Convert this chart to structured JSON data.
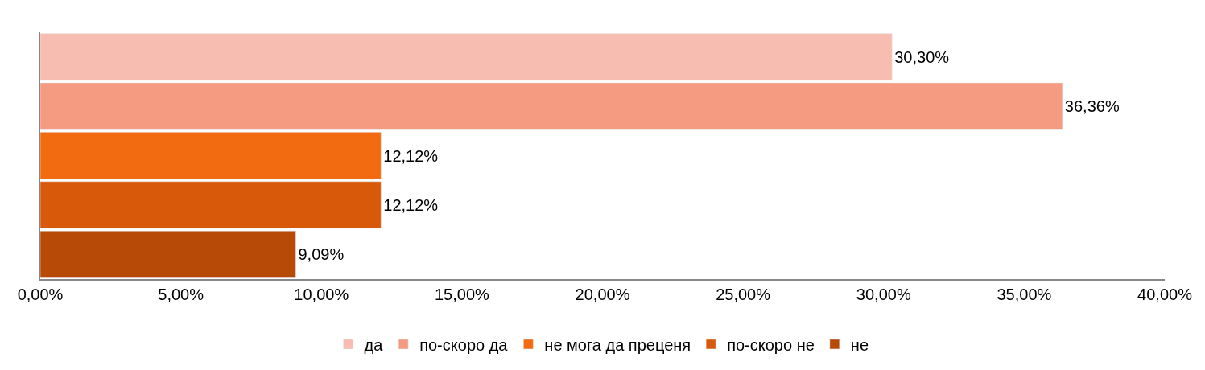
{
  "chart_data": {
    "type": "bar",
    "orientation": "horizontal",
    "categories": [
      null,
      null,
      null,
      null,
      null
    ],
    "series": [
      {
        "name": "да",
        "color": "#f7bdb0",
        "values": [
          30.3,
          null,
          null,
          null,
          null
        ],
        "value_labels": [
          "30,30%",
          null,
          null,
          null,
          null
        ]
      },
      {
        "name": "по-скоро да",
        "color": "#f49b82",
        "values": [
          null,
          36.36,
          null,
          null,
          null
        ],
        "value_labels": [
          null,
          "36,36%",
          null,
          null,
          null
        ]
      },
      {
        "name": "не мога да преценя",
        "color": "#f26b10",
        "values": [
          null,
          null,
          12.12,
          null,
          null
        ],
        "value_labels": [
          null,
          null,
          "12,12%",
          null,
          null
        ]
      },
      {
        "name": "по-скоро не",
        "color": "#d9590b",
        "values": [
          null,
          null,
          null,
          12.12,
          null
        ],
        "value_labels": [
          null,
          null,
          null,
          "12,12%",
          null
        ]
      },
      {
        "name": "не",
        "color": "#b84a08",
        "values": [
          null,
          null,
          null,
          null,
          9.09
        ],
        "value_labels": [
          null,
          null,
          null,
          null,
          "9,09%"
        ]
      }
    ],
    "xlim": [
      0,
      40
    ],
    "xticks": [
      {
        "value": 0,
        "label": "0,00%"
      },
      {
        "value": 5,
        "label": "5,00%"
      },
      {
        "value": 10,
        "label": "10,00%"
      },
      {
        "value": 15,
        "label": "15,00%"
      },
      {
        "value": 20,
        "label": "20,00%"
      },
      {
        "value": 25,
        "label": "25,00%"
      },
      {
        "value": 30,
        "label": "30,00%"
      },
      {
        "value": 35,
        "label": "35,00%"
      },
      {
        "value": 40,
        "label": "40,00%"
      }
    ],
    "legend": "bottom",
    "tick_labels": "x"
  }
}
